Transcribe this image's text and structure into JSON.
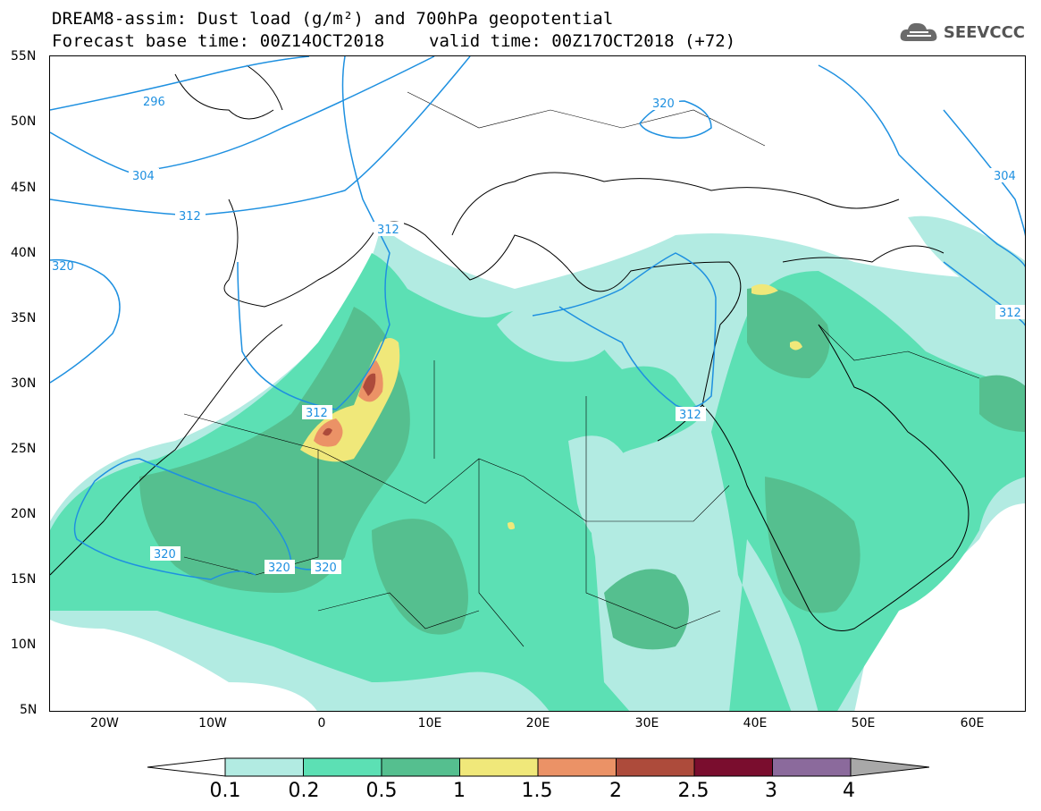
{
  "header": {
    "title_line1": "DREAM8-assim: Dust load (g/m²) and 700hPa geopotential",
    "title_line2": "Forecast base time: 00Z14OCT2018",
    "valid_time": "valid time: 00Z17OCT2018 (+72)",
    "logo_text": "SEEVCCC",
    "logo_icon": "cloud-icon"
  },
  "map": {
    "lat_labels": [
      "55N",
      "50N",
      "45N",
      "40N",
      "35N",
      "30N",
      "25N",
      "20N",
      "15N",
      "10N",
      "5N"
    ],
    "lon_labels": [
      "20W",
      "10W",
      "0",
      "10E",
      "20E",
      "30E",
      "40E",
      "50E",
      "60E"
    ],
    "contour_labels": [
      "296",
      "304",
      "312",
      "320",
      "312",
      "312",
      "312",
      "304",
      "320",
      "320",
      "320",
      "320",
      "312"
    ],
    "contour_color": "#1e90e0"
  },
  "colorbar": {
    "labels": [
      "0.1",
      "0.2",
      "0.5",
      "1",
      "1.5",
      "2",
      "2.5",
      "3",
      "4"
    ],
    "colors": [
      "#b2ebe2",
      "#5ce0b4",
      "#55bf8f",
      "#f0e87a",
      "#eb9266",
      "#ad4b3b",
      "#7a0d2e",
      "#8b6a9c",
      "#a8a8a8"
    ]
  }
}
